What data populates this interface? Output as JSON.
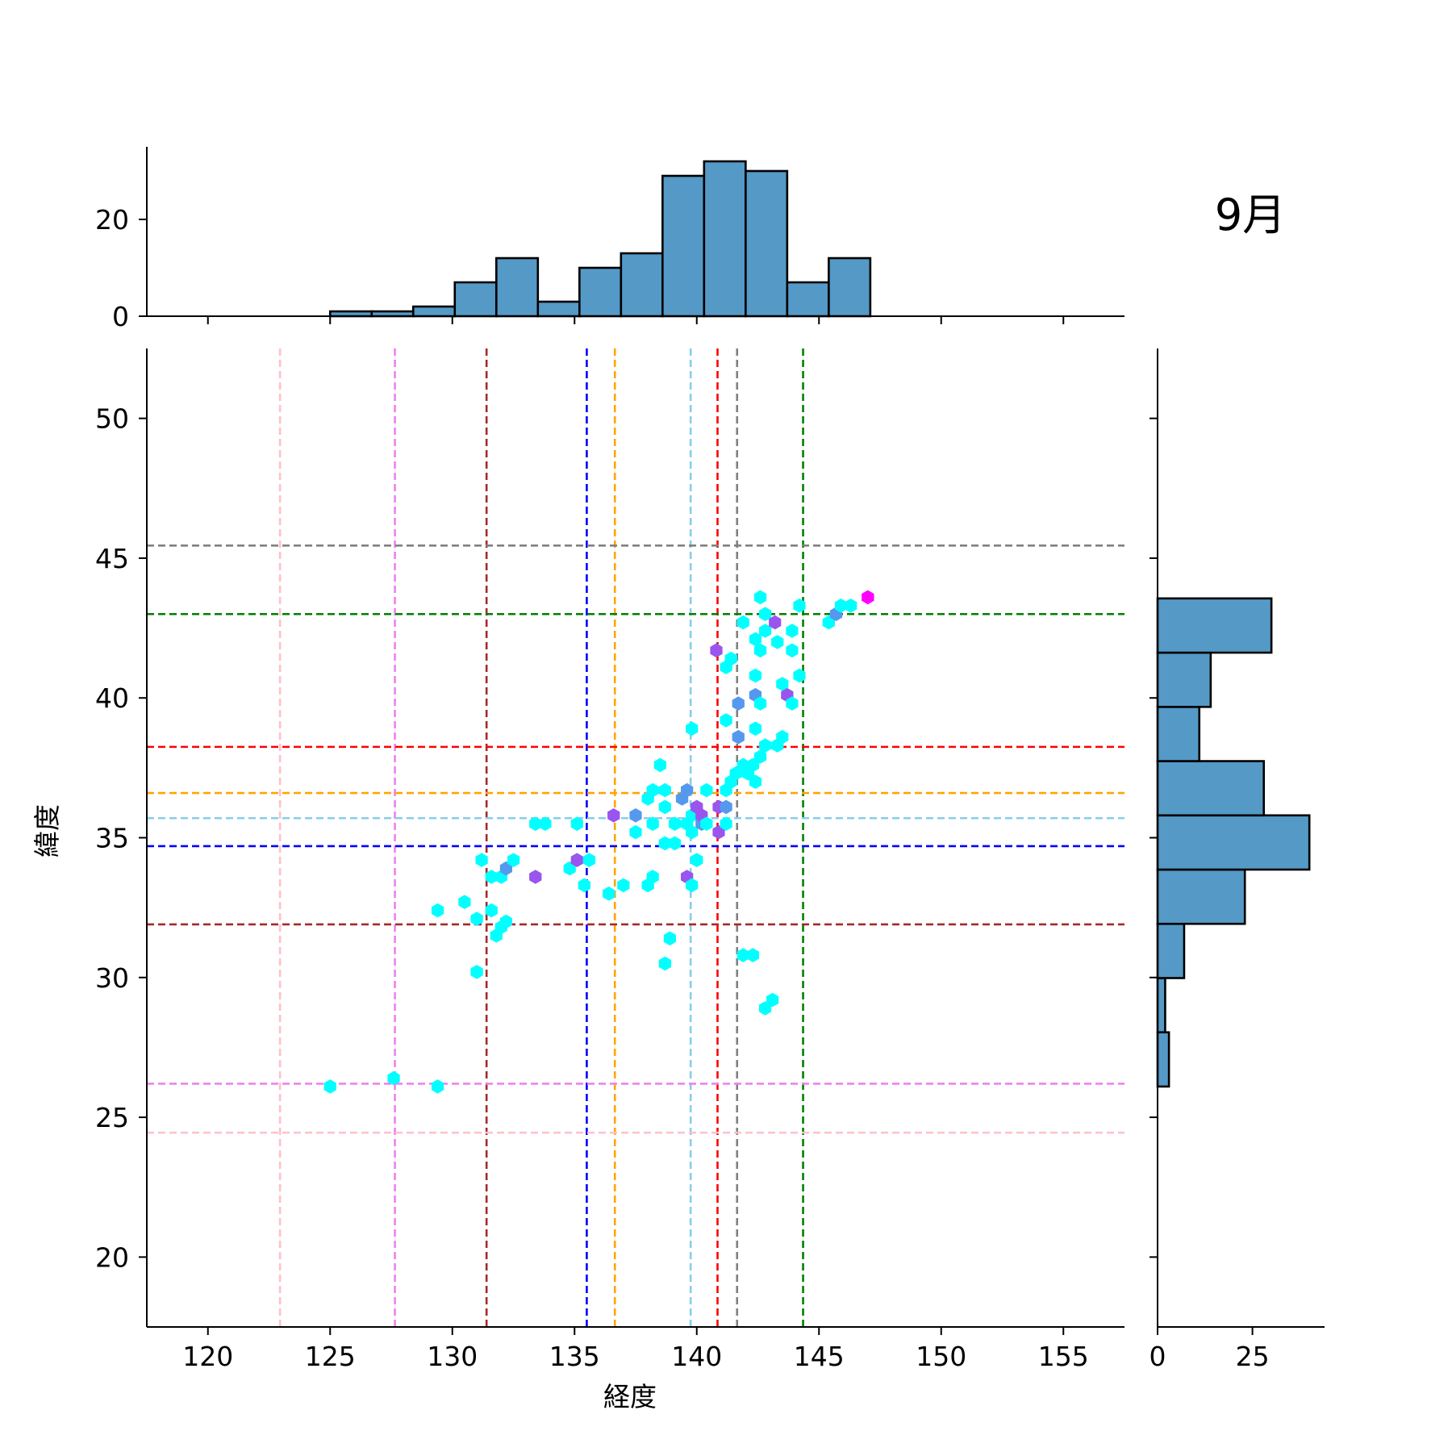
{
  "figure": {
    "title": "9月"
  },
  "chart_data": {
    "type": "hexbin-joint",
    "title": "9月",
    "xlabel": "経度",
    "ylabel": "緯度",
    "xlim": [
      117.5,
      157.5
    ],
    "ylim": [
      17.5,
      52.5
    ],
    "xticks": [
      120,
      125,
      130,
      135,
      140,
      145,
      150,
      155
    ],
    "yticks": [
      20,
      25,
      30,
      35,
      40,
      45,
      50
    ],
    "hexbin_colors": [
      "#00ffff",
      "#5599ee",
      "#9955ee",
      "#ff00ff"
    ],
    "hex_points": [
      [
        125.0,
        26.1,
        0
      ],
      [
        127.6,
        26.4,
        0
      ],
      [
        129.4,
        26.1,
        0
      ],
      [
        129.4,
        32.4,
        0
      ],
      [
        130.5,
        32.7,
        0
      ],
      [
        131.0,
        30.2,
        0
      ],
      [
        131.0,
        32.1,
        0
      ],
      [
        131.2,
        34.2,
        0
      ],
      [
        131.6,
        32.4,
        0
      ],
      [
        131.6,
        33.6,
        0
      ],
      [
        131.8,
        31.5,
        0
      ],
      [
        132.0,
        31.8,
        0
      ],
      [
        132.0,
        33.6,
        0
      ],
      [
        132.2,
        33.9,
        1
      ],
      [
        132.2,
        32.0,
        0
      ],
      [
        132.5,
        34.2,
        0
      ],
      [
        133.4,
        33.6,
        2
      ],
      [
        133.4,
        35.5,
        0
      ],
      [
        133.8,
        35.5,
        0
      ],
      [
        134.8,
        33.9,
        0
      ],
      [
        135.1,
        34.2,
        2
      ],
      [
        135.1,
        35.5,
        0
      ],
      [
        135.4,
        33.3,
        0
      ],
      [
        135.6,
        34.2,
        0
      ],
      [
        136.4,
        33.0,
        0
      ],
      [
        136.6,
        35.8,
        2
      ],
      [
        137.0,
        33.3,
        0
      ],
      [
        137.5,
        35.2,
        0
      ],
      [
        137.5,
        35.8,
        1
      ],
      [
        138.0,
        33.3,
        0
      ],
      [
        138.0,
        36.4,
        0
      ],
      [
        138.2,
        33.6,
        0
      ],
      [
        138.2,
        35.5,
        0
      ],
      [
        138.2,
        36.7,
        0
      ],
      [
        138.5,
        37.6,
        0
      ],
      [
        138.7,
        30.5,
        0
      ],
      [
        138.7,
        34.8,
        0
      ],
      [
        138.7,
        36.1,
        0
      ],
      [
        138.7,
        36.7,
        0
      ],
      [
        138.9,
        31.4,
        0
      ],
      [
        139.1,
        34.8,
        0
      ],
      [
        139.1,
        35.5,
        0
      ],
      [
        139.4,
        36.4,
        1
      ],
      [
        139.6,
        33.6,
        2
      ],
      [
        139.6,
        35.5,
        0
      ],
      [
        139.6,
        36.7,
        1
      ],
      [
        139.8,
        33.3,
        0
      ],
      [
        139.8,
        35.2,
        0
      ],
      [
        139.8,
        35.8,
        0
      ],
      [
        139.8,
        38.9,
        0
      ],
      [
        140.0,
        34.2,
        0
      ],
      [
        140.0,
        36.1,
        2
      ],
      [
        140.2,
        35.5,
        1
      ],
      [
        140.2,
        35.8,
        2
      ],
      [
        140.4,
        35.5,
        0
      ],
      [
        140.4,
        36.7,
        0
      ],
      [
        140.8,
        41.7,
        2
      ],
      [
        140.9,
        35.2,
        2
      ],
      [
        140.9,
        36.1,
        2
      ],
      [
        141.2,
        35.5,
        0
      ],
      [
        141.2,
        36.1,
        1
      ],
      [
        141.2,
        36.7,
        0
      ],
      [
        141.2,
        39.2,
        0
      ],
      [
        141.2,
        41.1,
        0
      ],
      [
        141.4,
        37.0,
        0
      ],
      [
        141.4,
        41.4,
        0
      ],
      [
        141.6,
        37.3,
        0
      ],
      [
        141.7,
        38.6,
        1
      ],
      [
        141.7,
        39.8,
        1
      ],
      [
        141.9,
        37.6,
        0
      ],
      [
        141.9,
        42.7,
        0
      ],
      [
        141.9,
        30.8,
        0
      ],
      [
        142.1,
        37.3,
        0
      ],
      [
        142.3,
        37.6,
        0
      ],
      [
        142.3,
        30.8,
        0
      ],
      [
        142.4,
        37.0,
        0
      ],
      [
        142.4,
        38.9,
        0
      ],
      [
        142.4,
        40.1,
        1
      ],
      [
        142.4,
        40.8,
        0
      ],
      [
        142.4,
        42.1,
        0
      ],
      [
        142.6,
        37.9,
        0
      ],
      [
        142.6,
        39.8,
        0
      ],
      [
        142.6,
        41.7,
        0
      ],
      [
        142.6,
        43.6,
        0
      ],
      [
        142.8,
        38.3,
        0
      ],
      [
        142.8,
        42.4,
        0
      ],
      [
        142.8,
        43.0,
        0
      ],
      [
        142.8,
        28.9,
        0
      ],
      [
        143.1,
        29.2,
        0
      ],
      [
        143.2,
        42.7,
        2
      ],
      [
        143.3,
        38.3,
        0
      ],
      [
        143.3,
        42.0,
        0
      ],
      [
        143.5,
        38.6,
        0
      ],
      [
        143.5,
        40.5,
        0
      ],
      [
        143.7,
        40.1,
        2
      ],
      [
        143.9,
        39.8,
        0
      ],
      [
        143.9,
        41.7,
        0
      ],
      [
        143.9,
        42.4,
        0
      ],
      [
        144.2,
        40.8,
        0
      ],
      [
        144.2,
        43.3,
        0
      ],
      [
        145.4,
        42.7,
        0
      ],
      [
        145.7,
        43.0,
        1
      ],
      [
        145.9,
        43.3,
        0
      ],
      [
        146.3,
        43.3,
        0
      ],
      [
        147.0,
        43.6,
        3
      ]
    ],
    "vlines": [
      {
        "x": 122.95,
        "color": "#ffc0cb"
      },
      {
        "x": 127.65,
        "color": "#ee82ee"
      },
      {
        "x": 131.4,
        "color": "#a52a2a"
      },
      {
        "x": 135.5,
        "color": "#0000ff"
      },
      {
        "x": 136.65,
        "color": "#ffa500"
      },
      {
        "x": 139.75,
        "color": "#87ceeb"
      },
      {
        "x": 140.85,
        "color": "#ff0000"
      },
      {
        "x": 141.65,
        "color": "#808080"
      },
      {
        "x": 144.35,
        "color": "#008000"
      }
    ],
    "hlines": [
      {
        "y": 45.45,
        "color": "#808080"
      },
      {
        "y": 43.0,
        "color": "#008000"
      },
      {
        "y": 38.25,
        "color": "#ff0000"
      },
      {
        "y": 36.6,
        "color": "#ffa500"
      },
      {
        "y": 35.7,
        "color": "#87ceeb"
      },
      {
        "y": 34.7,
        "color": "#0000ff"
      },
      {
        "y": 31.9,
        "color": "#a52a2a"
      },
      {
        "y": 26.2,
        "color": "#ee82ee"
      },
      {
        "y": 24.45,
        "color": "#ffc0cb"
      }
    ],
    "top_hist": {
      "bar_color": "#5599c6",
      "bin_edges": [
        125.0,
        126.7,
        128.4,
        130.1,
        131.8,
        133.5,
        135.2,
        136.9,
        138.6,
        140.3,
        142.0,
        143.7,
        145.4,
        147.1
      ],
      "counts": [
        1,
        1,
        2,
        7,
        12,
        3,
        10,
        13,
        29,
        32,
        30,
        7,
        12
      ],
      "yticks": [
        0,
        20
      ],
      "ylim": [
        0,
        35
      ]
    },
    "right_hist": {
      "bar_color": "#5599c6",
      "bin_edges": [
        26.1,
        28.04,
        29.98,
        31.92,
        33.86,
        35.8,
        37.74,
        39.68,
        41.62,
        43.56
      ],
      "counts": [
        3,
        2,
        7,
        23,
        40,
        28,
        11,
        14,
        30
      ],
      "xticks": [
        0,
        25
      ],
      "xlim": [
        0,
        44
      ]
    }
  }
}
